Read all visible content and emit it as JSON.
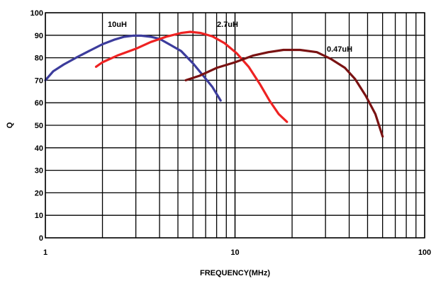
{
  "chart_data": {
    "type": "line",
    "title": "",
    "xlabel": "FREQUENCY(MHz)",
    "ylabel": "Q",
    "x_scale": "log",
    "xlim": [
      1,
      100
    ],
    "ylim": [
      0,
      100
    ],
    "grid": true,
    "x_tick_labels": [
      {
        "value": 1,
        "label": "1"
      },
      {
        "value": 10,
        "label": "10"
      },
      {
        "value": 100,
        "label": "100"
      }
    ],
    "y_ticks": [
      0,
      10,
      20,
      30,
      40,
      50,
      60,
      70,
      80,
      90,
      100
    ],
    "series": [
      {
        "name": "10uH",
        "color": "#3c3c9c",
        "x": [
          1.0,
          1.1,
          1.25,
          1.45,
          1.7,
          2.0,
          2.3,
          2.6,
          2.9,
          3.2,
          3.6,
          4.0,
          4.5,
          5.2,
          6.0,
          6.8,
          7.6,
          8.4
        ],
        "y": [
          70,
          74,
          77,
          80,
          83,
          86,
          88,
          89.3,
          89.8,
          89.8,
          89.3,
          88.4,
          86,
          83,
          77.5,
          72,
          67,
          61
        ]
      },
      {
        "name": "2.7uH",
        "color": "#ee2222",
        "x": [
          1.85,
          2.0,
          2.4,
          3.0,
          3.6,
          4.4,
          5.2,
          5.8,
          6.6,
          7.6,
          8.8,
          10.2,
          11.8,
          13.6,
          15.2,
          17.0,
          18.8
        ],
        "y": [
          76,
          78,
          81,
          84,
          87,
          89.5,
          91,
          91.5,
          91,
          89.5,
          86.5,
          82,
          76,
          68,
          61,
          55,
          51.5
        ]
      },
      {
        "name": "0.47uH",
        "color": "#7a1212",
        "x": [
          5.5,
          6.5,
          8.0,
          10.0,
          12.5,
          15.0,
          18.0,
          22.0,
          27.0,
          32.0,
          38.0,
          43.0,
          49.0,
          55.0,
          60.0
        ],
        "y": [
          70,
          72,
          75.5,
          78,
          81,
          82.5,
          83.5,
          83.5,
          82.5,
          79.5,
          75.5,
          70.5,
          63,
          55,
          45
        ]
      }
    ],
    "annotations": [
      "10uH",
      "2.7uH",
      "0.47uH"
    ]
  }
}
